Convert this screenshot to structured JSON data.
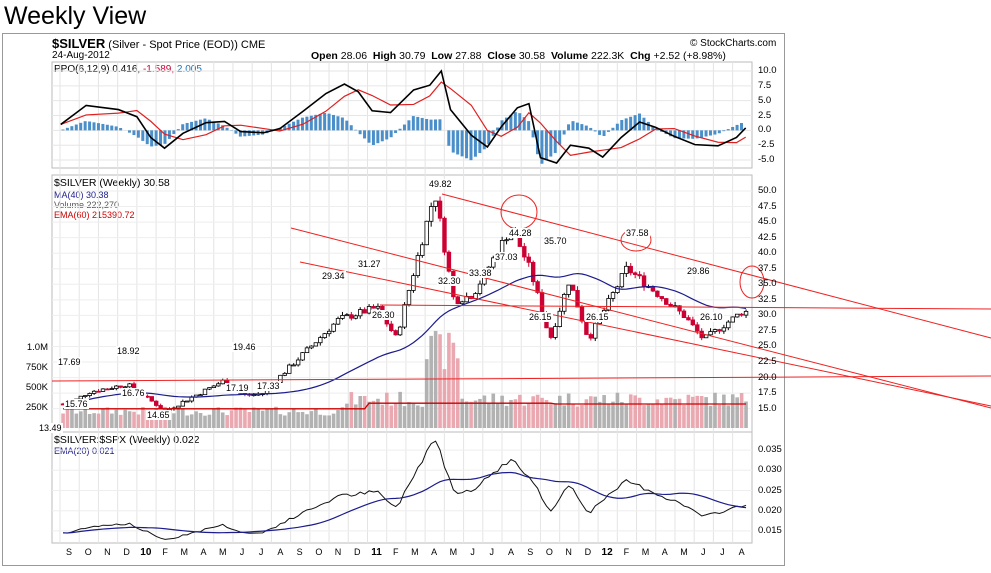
{
  "page_title": "Weekly View",
  "header": {
    "symbol": "$SILVER",
    "description": "(Silver - Spot Price (EOD))",
    "exchange": "CME",
    "copyright": "© StockCharts.com",
    "date": "24-Aug-2012",
    "open_label": "Open",
    "open": "28.06",
    "high_label": "High",
    "high": "30.79",
    "low_label": "Low",
    "low": "27.88",
    "close_label": "Close",
    "close": "30.58",
    "volume_label": "Volume",
    "volume": "222.3K",
    "chg_label": "Chg",
    "chg": "+2.52 (+8.98%)"
  },
  "ppo_panel": {
    "legend_name": "PPO(6,12,9)",
    "legend_v1": "0.416,",
    "legend_v2": "-1.589,",
    "legend_v3": "2.005",
    "ticks": [
      "10.0",
      "7.5",
      "5.0",
      "2.5",
      "0.0",
      "-2.5",
      "-5.0"
    ]
  },
  "price_panel": {
    "legend_title": "$SILVER (Weekly) 30.58",
    "legend_ma": "MA(40) 30.38",
    "legend_vol": "Volume 222,270",
    "legend_ema": "EMA(60) 215390.72",
    "price_ticks": [
      "50.0",
      "47.5",
      "45.0",
      "42.5",
      "40.0",
      "37.5",
      "35.0",
      "32.5",
      "30.0",
      "27.5",
      "25.0",
      "22.5",
      "20.0",
      "17.5",
      "15.0"
    ],
    "volume_ticks": [
      "1.0M",
      "750K",
      "500K",
      "250K"
    ],
    "annotations": [
      "17.69",
      "15.76",
      "18.92",
      "16.76",
      "14.65",
      "19.46",
      "17.19",
      "17.33",
      "13.49",
      "29.34",
      "31.27",
      "26.30",
      "49.82",
      "32.30",
      "33.38",
      "44.28",
      "37.03",
      "35.70",
      "26.15",
      "26.15",
      "37.58",
      "29.86",
      "26.10"
    ]
  },
  "ratio_panel": {
    "legend_title": "$SILVER:$SPX (Weekly) 0.022",
    "legend_ema": "EMA(20) 0.021",
    "ticks": [
      "0.035",
      "0.030",
      "0.025",
      "0.020",
      "0.015"
    ]
  },
  "x_axis": {
    "months": [
      "S",
      "O",
      "N",
      "D",
      "10",
      "F",
      "M",
      "A",
      "M",
      "J",
      "J",
      "A",
      "S",
      "O",
      "N",
      "D",
      "11",
      "F",
      "M",
      "A",
      "M",
      "J",
      "J",
      "A",
      "S",
      "O",
      "N",
      "D",
      "12",
      "F",
      "M",
      "A",
      "M",
      "J",
      "J",
      "A"
    ]
  },
  "colors": {
    "up": "#000000",
    "down": "#cc0033",
    "ma": "#1c1c8c",
    "ema": "#e02020",
    "hist": "#4a8fc9",
    "trend": "#ee2222",
    "vol_up": "#aaaaaa",
    "vol_down": "#e8a0a8"
  },
  "chart_data": {
    "type": "candlestick",
    "title": "$SILVER (Silver - Spot Price (EOD))",
    "period": "Weekly",
    "x_range": [
      "2009-09",
      "2012-08"
    ],
    "price": {
      "ylim": [
        12.5,
        51
      ],
      "key_points": [
        {
          "date": "2009-09",
          "value": 15.76
        },
        {
          "date": "2009-10",
          "value": 17.69
        },
        {
          "date": "2009-12",
          "value": 18.92
        },
        {
          "date": "2010-01",
          "value": 16.76
        },
        {
          "date": "2010-02",
          "value": 14.65
        },
        {
          "date": "2010-05",
          "value": 19.46
        },
        {
          "date": "2010-06",
          "value": 17.19
        },
        {
          "date": "2010-07",
          "value": 17.33
        },
        {
          "date": "2010-11",
          "value": 29.34
        },
        {
          "date": "2011-01",
          "value": 31.27
        },
        {
          "date": "2011-02",
          "value": 26.3
        },
        {
          "date": "2011-04",
          "value": 49.82
        },
        {
          "date": "2011-05",
          "value": 32.3
        },
        {
          "date": "2011-06",
          "value": 33.38
        },
        {
          "date": "2011-08",
          "value": 44.28
        },
        {
          "date": "2011-09",
          "value": 37.03
        },
        {
          "date": "2011-10",
          "value": 26.15
        },
        {
          "date": "2011-11",
          "value": 35.7
        },
        {
          "date": "2011-12",
          "value": 26.15
        },
        {
          "date": "2012-02",
          "value": 37.58
        },
        {
          "date": "2012-05",
          "value": 29.86
        },
        {
          "date": "2012-06",
          "value": 26.1
        },
        {
          "date": "2012-08",
          "value": 30.58
        }
      ],
      "ma40_last": 30.38,
      "last_close": 30.58
    },
    "ppo": {
      "params": "6,12,9",
      "values": [
        0.416,
        -1.589,
        2.005
      ],
      "ylim": [
        -6,
        11
      ]
    },
    "volume": {
      "last": 222270,
      "ema60": 215390.72
    },
    "ratio": {
      "name": "$SILVER:$SPX",
      "last": 0.022,
      "ema20": 0.021,
      "ylim": [
        0.013,
        0.038
      ]
    }
  }
}
